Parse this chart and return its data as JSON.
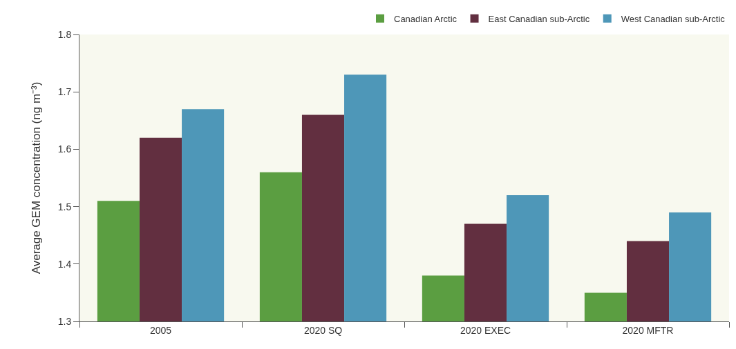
{
  "chart_data": {
    "type": "bar",
    "ylabel": "Average GEM concentration (ng m⁻³)",
    "categories": [
      "2005",
      "2020 SQ",
      "2020 EXEC",
      "2020 MFTR"
    ],
    "series": [
      {
        "name": "Canadian Arctic",
        "color": "#5b9e41",
        "values": [
          1.51,
          1.56,
          1.38,
          1.35
        ]
      },
      {
        "name": "East Canadian sub-Arctic",
        "color": "#622f40",
        "values": [
          1.62,
          1.66,
          1.47,
          1.44
        ]
      },
      {
        "name": "West Canadian sub-Arctic",
        "color": "#4e97b8",
        "values": [
          1.67,
          1.73,
          1.52,
          1.49
        ]
      }
    ],
    "ylim": [
      1.3,
      1.8
    ],
    "yticks": [
      1.3,
      1.4,
      1.5,
      1.6,
      1.7,
      1.8
    ],
    "grid": false,
    "legend": "top right"
  }
}
